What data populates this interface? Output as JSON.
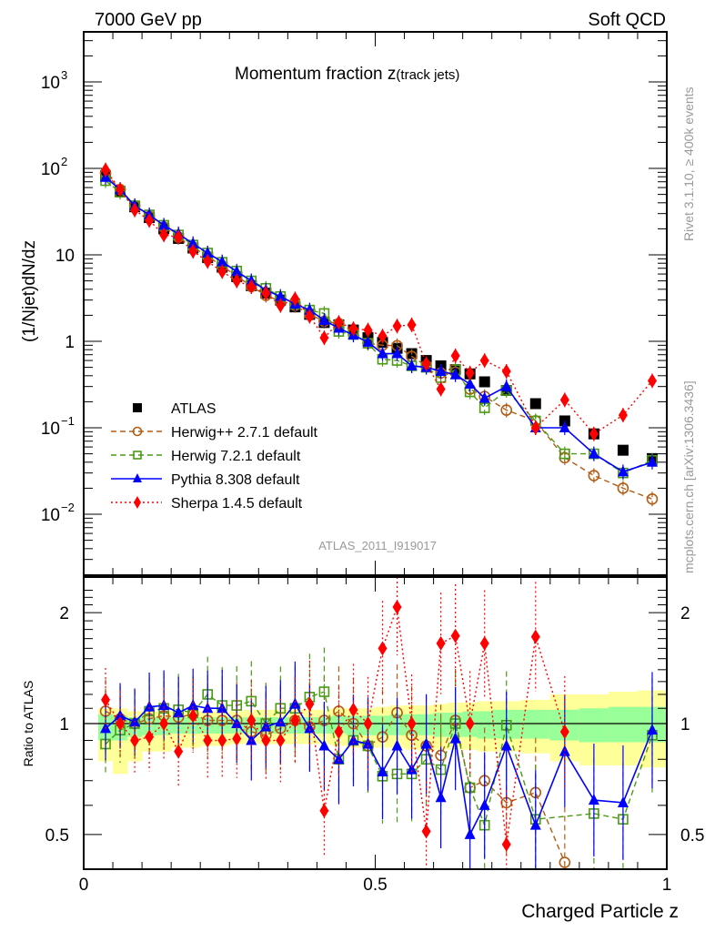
{
  "header": {
    "left": "7000 GeV pp",
    "right": "Soft QCD"
  },
  "side_labels": {
    "rivet": "Rivet 3.1.10, ≥ 400k events",
    "mcplots": "mcplots.cern.ch [arXiv:1306.3436]"
  },
  "chart_data": [
    {
      "type": "scatter",
      "panel": "main",
      "title": "Momentum fraction z",
      "title_sub": "(track jets)",
      "ylabel": "(1/Njet)dN/dz",
      "xlabel": "Charged Particle z",
      "yscale": "log",
      "ylim": [
        0.0022,
        4000
      ],
      "xlim": [
        0,
        1
      ],
      "yticks": [
        {
          "v": 0.01,
          "base": "10",
          "exp": "−2"
        },
        {
          "v": 0.1,
          "base": "10",
          "exp": "−1"
        },
        {
          "v": 1,
          "base": "1",
          "exp": ""
        },
        {
          "v": 10,
          "base": "10",
          "exp": ""
        },
        {
          "v": 100,
          "base": "10",
          "exp": "2"
        },
        {
          "v": 1000,
          "base": "10",
          "exp": "3"
        }
      ],
      "analysis_id": "ATLAS_2011_I919017",
      "legend_position": "bottom-left",
      "x": [
        0.0125,
        0.0375,
        0.0625,
        0.0875,
        0.1125,
        0.1375,
        0.1625,
        0.1875,
        0.2125,
        0.2375,
        0.2625,
        0.2875,
        0.3125,
        0.3375,
        0.3625,
        0.3875,
        0.4125,
        0.4375,
        0.4625,
        0.4875,
        0.5125,
        0.5375,
        0.5625,
        0.5875,
        0.6125,
        0.6375,
        0.6625,
        0.6875,
        0.725,
        0.775,
        0.825,
        0.875,
        0.925,
        0.975
      ],
      "series": [
        {
          "name": "ATLAS",
          "color": "#000000",
          "marker": "square-filled",
          "line": "none",
          "values": [
            null,
            82,
            54,
            36,
            27,
            20,
            15.5,
            12,
            9.3,
            7.2,
            5.6,
            4.4,
            3.6,
            3.0,
            2.5,
            2.05,
            1.65,
            1.55,
            1.35,
            1.1,
            0.97,
            0.83,
            0.72,
            0.6,
            0.52,
            0.47,
            0.42,
            0.34,
            0.27,
            0.19,
            0.12,
            0.085,
            0.055,
            0.044
          ]
        },
        {
          "name": "Herwig++ 2.7.1 default",
          "color": "#b35c14",
          "marker": "circle-open",
          "line": "dashed",
          "values": [
            null,
            88,
            57,
            37,
            28,
            21,
            16,
            12.3,
            9.6,
            7.4,
            5.7,
            4.3,
            3.4,
            2.9,
            2.6,
            2.05,
            1.7,
            1.6,
            1.3,
            0.95,
            0.9,
            0.89,
            0.67,
            0.52,
            0.43,
            0.44,
            0.28,
            0.23,
            0.16,
            0.12,
            0.045,
            0.028,
            0.02,
            0.015
          ]
        },
        {
          "name": "Herwig 7.2.1 default",
          "color": "#4a9a14",
          "marker": "square-open",
          "line": "dashed",
          "values": [
            null,
            72,
            53,
            37,
            29,
            22,
            17,
            13,
            10.5,
            8.2,
            6.5,
            5.0,
            4.1,
            3.3,
            2.7,
            2.3,
            2.1,
            1.3,
            1.2,
            0.95,
            0.62,
            0.6,
            0.52,
            0.5,
            0.38,
            0.47,
            0.26,
            0.17,
            0.27,
            0.12,
            0.05,
            0.05,
            0.03,
            0.042
          ]
        },
        {
          "name": "Pythia 8.308 default",
          "color": "#0000ff",
          "marker": "triangle-filled",
          "line": "solid",
          "values": [
            null,
            79,
            57,
            37,
            29,
            22,
            17.5,
            13.5,
            10.5,
            8.3,
            6.4,
            5.0,
            3.9,
            3.3,
            2.7,
            2.3,
            1.75,
            1.42,
            1.18,
            0.98,
            0.72,
            0.72,
            0.52,
            0.5,
            0.45,
            0.41,
            0.32,
            0.22,
            0.3,
            0.1,
            0.1,
            0.05,
            0.031,
            0.04
          ]
        },
        {
          "name": "Sherpa 1.4.5 default",
          "color": "#ff0000",
          "marker": "diamond-filled",
          "line": "dotted",
          "values": [
            null,
            96,
            57,
            33,
            25,
            17,
            16,
            11,
            8.4,
            6.4,
            5.0,
            4.3,
            3.6,
            2.6,
            3.1,
            1.95,
            1.1,
            1.65,
            1.4,
            1.35,
            1.15,
            1.5,
            1.55,
            0.55,
            0.28,
            0.68,
            0.43,
            0.6,
            0.45,
            0.1,
            0.21,
            0.085,
            0.14,
            0.35
          ]
        }
      ]
    },
    {
      "type": "scatter",
      "panel": "ratio",
      "ylabel": "Ratio to ATLAS",
      "xlabel": "Charged Particle z",
      "yscale": "log",
      "ylim": [
        0.42,
        2.4
      ],
      "xlim": [
        0,
        1
      ],
      "yticks": [
        0.5,
        1,
        2
      ],
      "xticks": [
        0,
        0.5,
        1
      ],
      "band_inner_color": "#99ff99",
      "band_outer_color": "#ffff99",
      "bands": {
        "x_edges": [
          0.025,
          0.05,
          0.075,
          0.1,
          0.125,
          0.15,
          0.175,
          0.2,
          0.225,
          0.25,
          0.275,
          0.3,
          0.325,
          0.35,
          0.375,
          0.4,
          0.425,
          0.45,
          0.475,
          0.5,
          0.525,
          0.55,
          0.575,
          0.6,
          0.625,
          0.65,
          0.675,
          0.7,
          0.75,
          0.8,
          0.85,
          0.9,
          0.95,
          1.0
        ],
        "inner_lo": [
          0.9,
          0.9,
          0.92,
          0.93,
          0.93,
          0.94,
          0.94,
          0.94,
          0.94,
          0.94,
          0.94,
          0.94,
          0.94,
          0.94,
          0.94,
          0.94,
          0.94,
          0.93,
          0.93,
          0.93,
          0.93,
          0.93,
          0.93,
          0.92,
          0.92,
          0.92,
          0.91,
          0.91,
          0.91,
          0.9,
          0.89,
          0.89,
          0.89
        ],
        "inner_hi": [
          1.06,
          1.05,
          1.04,
          1.04,
          1.04,
          1.04,
          1.04,
          1.04,
          1.04,
          1.04,
          1.04,
          1.04,
          1.04,
          1.04,
          1.04,
          1.04,
          1.05,
          1.05,
          1.05,
          1.05,
          1.06,
          1.06,
          1.06,
          1.07,
          1.07,
          1.08,
          1.08,
          1.09,
          1.09,
          1.09,
          1.1,
          1.11,
          1.11
        ],
        "outer_lo": [
          0.79,
          0.73,
          0.79,
          0.84,
          0.84,
          0.86,
          0.86,
          0.87,
          0.87,
          0.88,
          0.88,
          0.88,
          0.88,
          0.88,
          0.88,
          0.88,
          0.87,
          0.86,
          0.86,
          0.86,
          0.86,
          0.85,
          0.84,
          0.85,
          0.85,
          0.85,
          0.84,
          0.84,
          0.83,
          0.79,
          0.77,
          0.77,
          0.76
        ],
        "outer_hi": [
          1.1,
          1.1,
          1.08,
          1.08,
          1.08,
          1.08,
          1.08,
          1.08,
          1.08,
          1.08,
          1.09,
          1.09,
          1.09,
          1.09,
          1.09,
          1.09,
          1.1,
          1.1,
          1.1,
          1.11,
          1.12,
          1.12,
          1.12,
          1.13,
          1.14,
          1.14,
          1.15,
          1.15,
          1.16,
          1.2,
          1.2,
          1.22,
          1.23
        ]
      },
      "x": [
        0.0375,
        0.0625,
        0.0875,
        0.1125,
        0.1375,
        0.1625,
        0.1875,
        0.2125,
        0.2375,
        0.2625,
        0.2875,
        0.3125,
        0.3375,
        0.3625,
        0.3875,
        0.4125,
        0.4375,
        0.4625,
        0.4875,
        0.5125,
        0.5375,
        0.5625,
        0.5875,
        0.6125,
        0.6375,
        0.6625,
        0.6875,
        0.725,
        0.775,
        0.825,
        0.875,
        0.925,
        0.975
      ],
      "series": [
        {
          "name": "Herwig++ 2.7.1 default",
          "color": "#b35c14",
          "values": [
            1.08,
            1.03,
            1.0,
            1.03,
            1.05,
            1.04,
            1.06,
            1.02,
            1.02,
            1.02,
            0.95,
            0.93,
            0.97,
            1.02,
            0.98,
            1.02,
            1.08,
            1.0,
            0.87,
            0.92,
            1.07,
            0.93,
            0.87,
            0.82,
            1.02,
            0.67,
            0.7,
            0.61,
            0.65,
            0.38,
            null,
            null,
            null
          ]
        },
        {
          "name": "Herwig 7.2.1 default",
          "color": "#4a9a14",
          "values": [
            0.88,
            0.96,
            1.0,
            1.08,
            1.1,
            1.09,
            1.07,
            1.2,
            1.12,
            1.12,
            1.15,
            1.0,
            1.1,
            1.1,
            1.18,
            1.22,
            0.8,
            0.9,
            0.87,
            0.72,
            0.73,
            0.73,
            0.8,
            0.75,
            1.0,
            0.67,
            0.53,
            0.99,
            0.55,
            null,
            0.57,
            0.55,
            0.93
          ]
        },
        {
          "name": "Pythia 8.308 default",
          "color": "#0000ff",
          "values": [
            0.97,
            1.05,
            1.01,
            1.11,
            1.12,
            1.07,
            1.12,
            1.1,
            1.1,
            1.0,
            0.9,
            0.98,
            1.01,
            1.13,
            0.97,
            0.87,
            0.8,
            0.9,
            0.88,
            0.74,
            0.87,
            0.75,
            0.88,
            0.63,
            0.91,
            0.5,
            0.6,
            0.87,
            0.53,
            0.84,
            0.62,
            0.61,
            0.96
          ]
        },
        {
          "name": "Sherpa 1.4.5 default",
          "color": "#ff0000",
          "values": [
            1.16,
            1.0,
            0.9,
            0.92,
            1.0,
            0.84,
            1.05,
            0.9,
            0.9,
            0.91,
            1.02,
            0.9,
            0.9,
            1.02,
            1.13,
            0.58,
            0.95,
            1.09,
            1.0,
            1.6,
            2.07,
            1.0,
            0.51,
            1.65,
            1.73,
            1.0,
            1.65,
            0.47,
            1.72,
            0.95,
            null,
            null,
            null
          ]
        }
      ]
    }
  ]
}
